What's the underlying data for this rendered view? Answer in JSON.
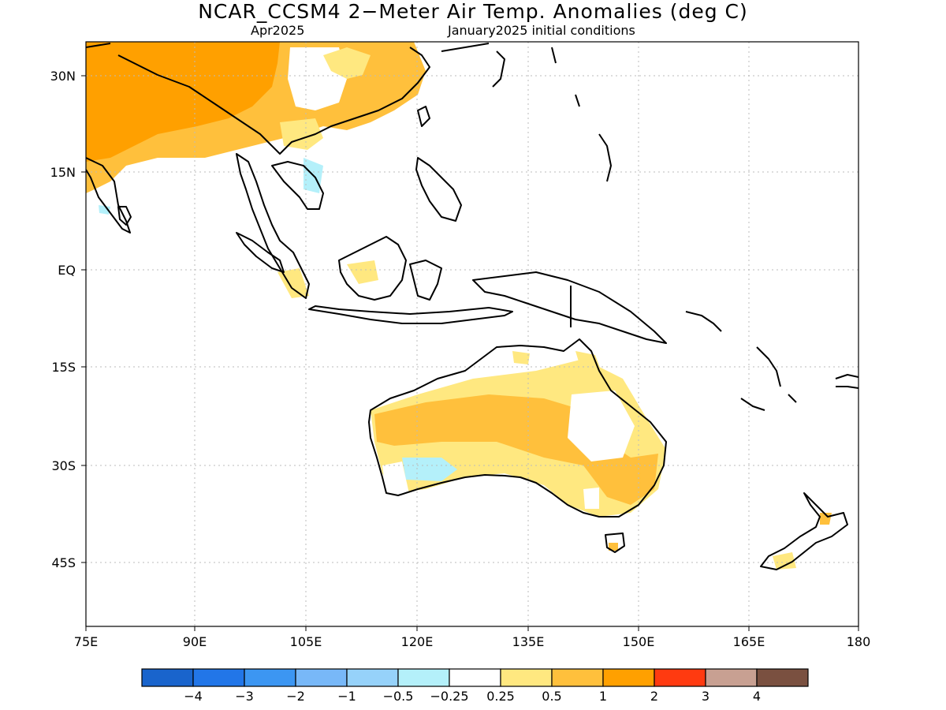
{
  "title": "NCAR_CCSM4 2−Meter Air Temp. Anomalies (deg C)",
  "subtitle_left": "Apr2025",
  "subtitle_right": "January2025 initial conditions",
  "x_ticks": [
    "75E",
    "90E",
    "105E",
    "120E",
    "135E",
    "150E",
    "165E",
    "180"
  ],
  "y_ticks": [
    "30N",
    "15N",
    "EQ",
    "15S",
    "30S",
    "45S"
  ],
  "colorbar": {
    "colors": [
      "#1964cc",
      "#2276e8",
      "#3c96f2",
      "#78b8f8",
      "#96d2fa",
      "#b4f0fa",
      "#ffffff",
      "#ffe880",
      "#ffc03c",
      "#ffa000",
      "#ff3a10",
      "#c8a092",
      "#7a5040"
    ],
    "labels": [
      "−4",
      "−3",
      "−2",
      "−1",
      "−0.5",
      "−0.25",
      "0.25",
      "0.5",
      "1",
      "2",
      "3",
      "4"
    ]
  }
}
